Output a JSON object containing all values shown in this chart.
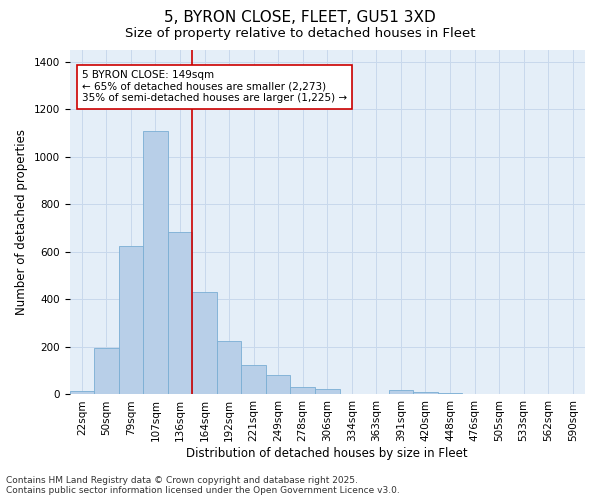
{
  "title": "5, BYRON CLOSE, FLEET, GU51 3XD",
  "subtitle": "Size of property relative to detached houses in Fleet",
  "xlabel": "Distribution of detached houses by size in Fleet",
  "ylabel": "Number of detached properties",
  "categories": [
    "22sqm",
    "50sqm",
    "79sqm",
    "107sqm",
    "136sqm",
    "164sqm",
    "192sqm",
    "221sqm",
    "249sqm",
    "278sqm",
    "306sqm",
    "334sqm",
    "363sqm",
    "391sqm",
    "420sqm",
    "448sqm",
    "476sqm",
    "505sqm",
    "533sqm",
    "562sqm",
    "590sqm"
  ],
  "values": [
    15,
    195,
    625,
    1110,
    685,
    430,
    225,
    125,
    80,
    30,
    25,
    0,
    0,
    20,
    10,
    5,
    2,
    2,
    1,
    1,
    1
  ],
  "bar_color": "#b8cfe8",
  "bar_edge_color": "#7aaed4",
  "vline_color": "#cc0000",
  "annotation_text": "5 BYRON CLOSE: 149sqm\n← 65% of detached houses are smaller (2,273)\n35% of semi-detached houses are larger (1,225) →",
  "annotation_box_color": "white",
  "annotation_box_edge_color": "#cc0000",
  "ylim": [
    0,
    1450
  ],
  "yticks": [
    0,
    200,
    400,
    600,
    800,
    1000,
    1200,
    1400
  ],
  "grid_color": "#c8d8ec",
  "background_color": "#e4eef8",
  "footnote": "Contains HM Land Registry data © Crown copyright and database right 2025.\nContains public sector information licensed under the Open Government Licence v3.0.",
  "title_fontsize": 11,
  "subtitle_fontsize": 9.5,
  "axis_label_fontsize": 8.5,
  "tick_fontsize": 7.5,
  "annotation_fontsize": 7.5,
  "footnote_fontsize": 6.5
}
